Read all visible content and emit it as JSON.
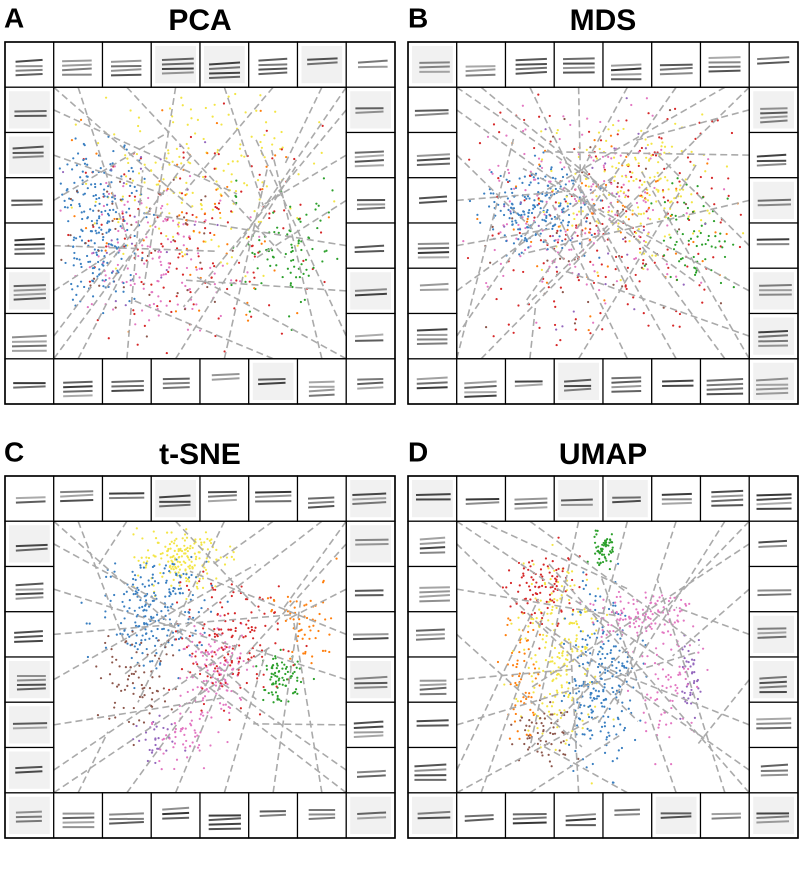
{
  "panels": [
    {
      "letter": "A",
      "title": "PCA"
    },
    {
      "letter": "B",
      "title": "MDS"
    },
    {
      "letter": "C",
      "title": "t-SNE"
    },
    {
      "letter": "D",
      "title": "UMAP"
    }
  ]
}
